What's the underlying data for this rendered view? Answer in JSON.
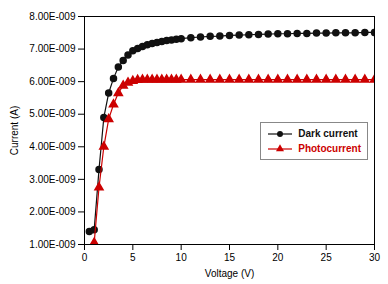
{
  "chart_data": {
    "type": "line",
    "xlabel": "Voltage (V)",
    "ylabel": "Current (A)",
    "series": [
      {
        "name": "Dark current",
        "color": "#111111",
        "marker": "circle",
        "x": [
          0.5,
          1.0,
          1.5,
          2.0,
          2.5,
          3.0,
          3.5,
          4.0,
          4.5,
          5.0,
          5.5,
          6.0,
          6.5,
          7.0,
          7.5,
          8.0,
          8.5,
          9.0,
          9.5,
          10.0,
          11.0,
          12.0,
          13.0,
          14.0,
          15.0,
          16.0,
          17.0,
          18.0,
          19.0,
          20.0,
          21.0,
          22.0,
          23.0,
          24.0,
          25.0,
          26.0,
          27.0,
          28.0,
          29.0,
          30.0
        ],
        "values": [
          1.4e-09,
          1.45e-09,
          3.3e-09,
          4.9e-09,
          5.65e-09,
          6.1e-09,
          6.45e-09,
          6.65e-09,
          6.82e-09,
          6.95e-09,
          7.02e-09,
          7.08e-09,
          7.13e-09,
          7.17e-09,
          7.2e-09,
          7.23e-09,
          7.26e-09,
          7.28e-09,
          7.3e-09,
          7.32e-09,
          7.35e-09,
          7.37e-09,
          7.39e-09,
          7.4e-09,
          7.42e-09,
          7.43e-09,
          7.44e-09,
          7.45e-09,
          7.46e-09,
          7.47e-09,
          7.47e-09,
          7.48e-09,
          7.48e-09,
          7.49e-09,
          7.49e-09,
          7.5e-09,
          7.5e-09,
          7.5e-09,
          7.51e-09,
          7.51e-09
        ]
      },
      {
        "name": "Photocurrent",
        "color": "#cc0000",
        "marker": "triangle",
        "x": [
          1.0,
          1.5,
          2.0,
          2.5,
          3.0,
          3.5,
          4.0,
          4.5,
          5.0,
          5.5,
          6.0,
          6.5,
          7.0,
          7.5,
          8.0,
          8.5,
          9.0,
          9.5,
          10.0,
          11.0,
          12.0,
          13.0,
          14.0,
          15.0,
          16.0,
          17.0,
          18.0,
          19.0,
          20.0,
          21.0,
          22.0,
          23.0,
          24.0,
          25.0,
          26.0,
          27.0,
          28.0,
          29.0,
          30.0
        ],
        "values": [
          1.05e-09,
          2.75e-09,
          4e-09,
          4.85e-09,
          5.3e-09,
          5.65e-09,
          5.88e-09,
          5.97e-09,
          6.02e-09,
          6.05e-09,
          6.06e-09,
          6.06e-09,
          6.06e-09,
          6.06e-09,
          6.06e-09,
          6.06e-09,
          6.06e-09,
          6.06e-09,
          6.06e-09,
          6.06e-09,
          6.06e-09,
          6.06e-09,
          6.06e-09,
          6.06e-09,
          6.06e-09,
          6.06e-09,
          6.06e-09,
          6.06e-09,
          6.06e-09,
          6.06e-09,
          6.06e-09,
          6.06e-09,
          6.06e-09,
          6.06e-09,
          6.06e-09,
          6.06e-09,
          6.06e-09,
          6.06e-09,
          6.06e-09
        ]
      }
    ],
    "xlim": [
      0,
      30
    ],
    "xticks": [
      0,
      5,
      10,
      15,
      20,
      25,
      30
    ],
    "ylim": [
      1e-09,
      8e-09
    ],
    "yticks": [
      {
        "value": 1e-09,
        "label": "1.00E-009"
      },
      {
        "value": 2e-09,
        "label": "2.00E-009"
      },
      {
        "value": 3e-09,
        "label": "3.00E-009"
      },
      {
        "value": 4e-09,
        "label": "4.00E-009"
      },
      {
        "value": 5e-09,
        "label": "5.00E-009"
      },
      {
        "value": 6e-09,
        "label": "6.00E-009"
      },
      {
        "value": 7e-09,
        "label": "7.00E-009"
      },
      {
        "value": 8e-09,
        "label": "8.00E-009"
      }
    ],
    "grid": false,
    "legend": "right"
  }
}
